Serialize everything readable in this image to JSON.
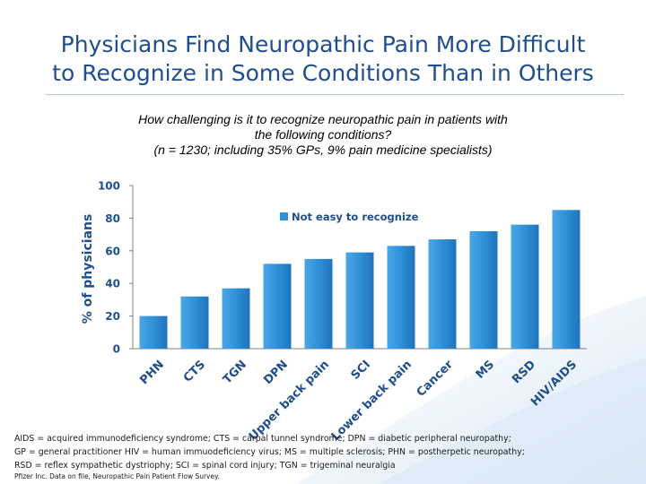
{
  "title": {
    "line1": "Physicians Find Neuropathic Pain More Difficult",
    "line2": "to Recognize in Some Conditions Than in Others"
  },
  "subtitle": {
    "line1": "How challenging is it to recognize neuropathic pain in patients with",
    "line2": "the following conditions?",
    "line3": "(n = 1230; including 35% GPs, 9% pain medicine specialists)"
  },
  "chart_data": {
    "type": "bar",
    "categories": [
      "PHN",
      "CTS",
      "TGN",
      "DPN",
      "Upper back pain",
      "SCI",
      "Lower back pain",
      "Cancer",
      "MS",
      "RSD",
      "HIV/AIDS"
    ],
    "series": [
      {
        "name": "Not easy to recognize",
        "values": [
          20,
          32,
          37,
          52,
          55,
          59,
          63,
          67,
          72,
          76,
          85
        ]
      }
    ],
    "ylabel": "% of physicians",
    "xlabel": "",
    "ylim": [
      0,
      100
    ],
    "yticks": [
      0,
      20,
      40,
      60,
      80,
      100
    ],
    "legend_position": "top",
    "bar_color": "#2f8fd8"
  },
  "footnotes": {
    "line1": "AIDS = acquired immunodeficiency syndrome; CTS = carpal tunnel syndrome; DPN = diabetic peripheral neuropathy;",
    "line2": "GP = general practitioner HIV = human immuodeficiency virus; MS = multiple sclerosis; PHN = postherpetic neuropathy;",
    "line3": "RSD = reflex sympathetic dystriophy; SCI = spinal cord injury; TGN = trigeminal neuralgia"
  },
  "source": "Pfizer Inc. Data on file, Neuropathic Pain Patient Flow Survey."
}
